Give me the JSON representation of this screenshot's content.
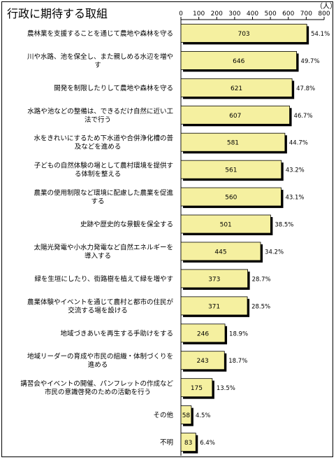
{
  "chart_data": {
    "type": "bar",
    "orientation": "horizontal",
    "title": "行政に期待する取組",
    "unit": "（人）",
    "xlim": [
      0,
      800
    ],
    "ticks": [
      "0",
      "100",
      "200",
      "300",
      "400",
      "500",
      "600",
      "700",
      "800"
    ],
    "bar_color": "#f5f0a0",
    "categories": [
      [
        "農林業を支援することを通じて農地や森林を守る"
      ],
      [
        "川や水路、池を保全し、また親しめる水辺を増や",
        "す"
      ],
      [
        "開発を制限したりして農地や森林を守る"
      ],
      [
        "水路や池などの整備は、できるだけ自然に近い工",
        "法で行う"
      ],
      [
        "水をきれいにするため下水道や合併浄化槽の普",
        "及などを進める"
      ],
      [
        "子どもの自然体験の場として農村環境を提供す",
        "る体制を整える"
      ],
      [
        "農業の使用制限など環境に配慮した農業を促進",
        "する"
      ],
      [
        "史跡や歴史的な景観を保全する"
      ],
      [
        "太陽光発電や小水力発電など自然エネルギーを",
        "導入する"
      ],
      [
        "緑を生垣にしたり、街路樹を植えて緑を増やす"
      ],
      [
        "農業体験やイベントを通じて農村と都市の住民が",
        "交流する場を設ける"
      ],
      [
        "地域づきあいを再生する手助けをする"
      ],
      [
        "地域リーダーの育成や市民の組織・体制づくりを",
        "進める"
      ],
      [
        "講習会やイベントの開催、パンフレットの作成など",
        "市民の意識啓発のための活動を行う"
      ],
      [
        "その他"
      ],
      [
        "不明"
      ]
    ],
    "values": [
      703,
      646,
      621,
      607,
      581,
      561,
      560,
      501,
      445,
      373,
      371,
      246,
      243,
      175,
      58,
      83
    ],
    "percent_labels": [
      "54.1%",
      "49.7%",
      "47.8%",
      "46.7%",
      "44.7%",
      "43.2%",
      "43.1%",
      "38.5%",
      "34.2%",
      "28.7%",
      "28.5%",
      "18.9%",
      "18.7%",
      "13.5%",
      "4.5%",
      "6.4%"
    ]
  }
}
